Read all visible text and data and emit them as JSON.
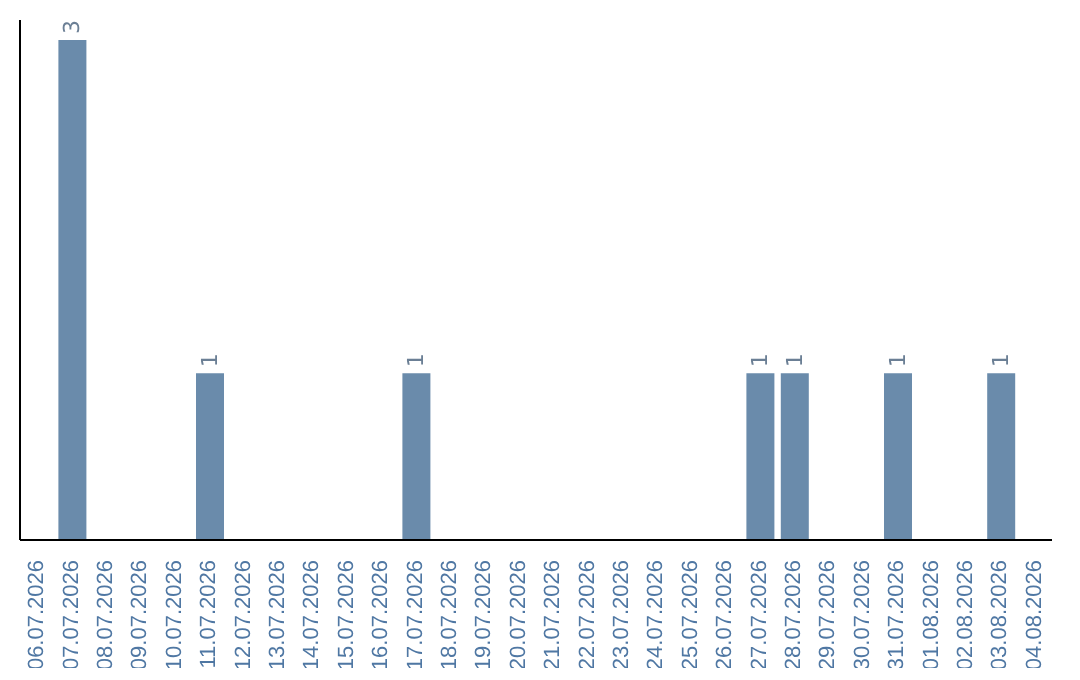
{
  "chart_data": {
    "type": "bar",
    "categories": [
      "06.07.2026",
      "07.07.2026",
      "08.07.2026",
      "09.07.2026",
      "10.07.2026",
      "11.07.2026",
      "12.07.2026",
      "13.07.2026",
      "14.07.2026",
      "15.07.2026",
      "16.07.2026",
      "17.07.2026",
      "18.07.2026",
      "19.07.2026",
      "20.07.2026",
      "21.07.2026",
      "22.07.2026",
      "23.07.2026",
      "24.07.2026",
      "25.07.2026",
      "26.07.2026",
      "27.07.2026",
      "28.07.2026",
      "29.07.2026",
      "30.07.2026",
      "31.07.2026",
      "01.08.2026",
      "02.08.2026",
      "03.08.2026",
      "04.08.2026"
    ],
    "values": [
      0,
      3,
      0,
      0,
      0,
      1,
      0,
      0,
      0,
      0,
      0,
      1,
      0,
      0,
      0,
      0,
      0,
      0,
      0,
      0,
      0,
      1,
      1,
      0,
      0,
      1,
      0,
      0,
      1,
      0
    ],
    "value_labels": [
      null,
      "3",
      null,
      null,
      null,
      "1",
      null,
      null,
      null,
      null,
      null,
      "1",
      null,
      null,
      null,
      null,
      null,
      null,
      null,
      null,
      null,
      "1",
      "1",
      null,
      null,
      "1",
      null,
      null,
      "1",
      null
    ],
    "color": "#6a8bab",
    "tick_labels": "x",
    "grid": false,
    "legend": false
  }
}
